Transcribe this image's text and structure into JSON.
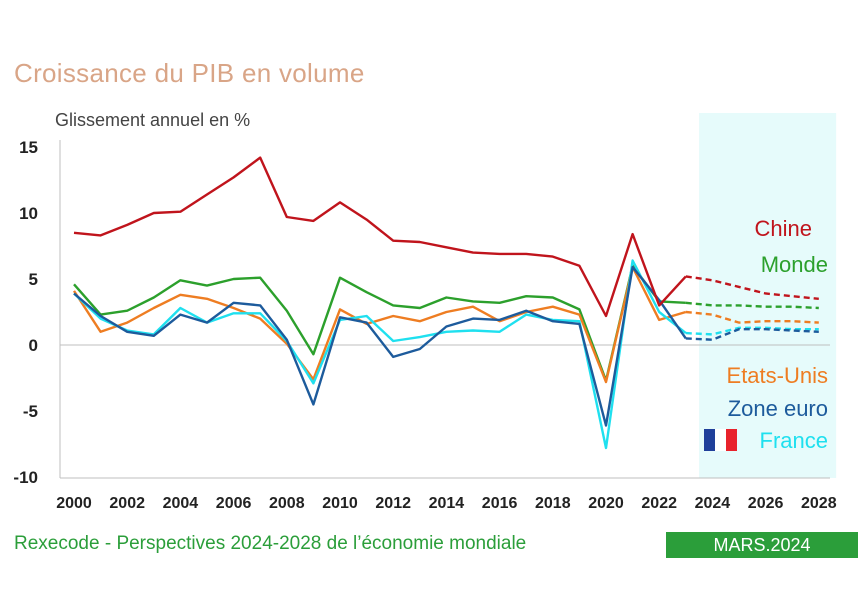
{
  "header": {
    "title": "Croissance du PIB en volume",
    "subtitle": "Glissement annuel en %"
  },
  "footer": {
    "source": "Rexecode - Perspectives 2024-2028 de l’économie mondiale",
    "date": "MARS.2024"
  },
  "colors": {
    "chine": "#c0141c",
    "monde": "#2ca02c",
    "etats_unis": "#ee7d22",
    "zone_euro": "#1d5b9c",
    "france": "#1fe0ef",
    "forecast_bg": "#e6fbfb",
    "flag_blue": "#1f3f9a",
    "flag_red": "#e8222b"
  },
  "chart_data": {
    "type": "line",
    "title": "Croissance du PIB en volume",
    "ylabel": "Glissement annuel en %",
    "x": [
      2000,
      2001,
      2002,
      2003,
      2004,
      2005,
      2006,
      2007,
      2008,
      2009,
      2010,
      2011,
      2012,
      2013,
      2014,
      2015,
      2016,
      2017,
      2018,
      2019,
      2020,
      2021,
      2022,
      2023,
      2024,
      2025,
      2026,
      2027,
      2028
    ],
    "xticks": [
      2000,
      2002,
      2004,
      2006,
      2008,
      2010,
      2012,
      2014,
      2016,
      2018,
      2020,
      2022,
      2024,
      2026,
      2028
    ],
    "yticks": [
      15,
      10,
      5,
      0,
      -5,
      -10
    ],
    "ylim": [
      -10,
      15
    ],
    "xlim": [
      2000,
      2028
    ],
    "forecast_start": 2023,
    "forecast_shading": [
      2023.5,
      2028.5
    ],
    "series": [
      {
        "key": "chine",
        "name": "Chine",
        "values": [
          8.5,
          8.3,
          9.1,
          10.0,
          10.1,
          11.4,
          12.7,
          14.2,
          9.7,
          9.4,
          10.8,
          9.5,
          7.9,
          7.8,
          7.4,
          7.0,
          6.9,
          6.9,
          6.7,
          6.0,
          2.2,
          8.4,
          3.0,
          5.2,
          4.9,
          4.4,
          3.9,
          3.7,
          3.5
        ]
      },
      {
        "key": "monde",
        "name": "Monde",
        "values": [
          4.6,
          2.3,
          2.6,
          3.6,
          4.9,
          4.5,
          5.0,
          5.1,
          2.6,
          -0.7,
          5.1,
          4.0,
          3.0,
          2.8,
          3.6,
          3.3,
          3.2,
          3.7,
          3.6,
          2.7,
          -2.7,
          6.0,
          3.3,
          3.2,
          3.0,
          3.0,
          2.9,
          2.9,
          2.8
        ]
      },
      {
        "key": "etats_unis",
        "name": "Etats-Unis",
        "values": [
          4.1,
          1.0,
          1.7,
          2.8,
          3.8,
          3.5,
          2.8,
          2.0,
          0.1,
          -2.6,
          2.7,
          1.6,
          2.2,
          1.8,
          2.5,
          2.9,
          1.8,
          2.5,
          2.9,
          2.3,
          -2.8,
          5.9,
          1.9,
          2.5,
          2.3,
          1.7,
          1.8,
          1.8,
          1.7
        ]
      },
      {
        "key": "zone_euro",
        "name": "Zone euro",
        "values": [
          3.9,
          2.2,
          1.0,
          0.7,
          2.3,
          1.7,
          3.2,
          3.0,
          0.4,
          -4.5,
          2.1,
          1.7,
          -0.9,
          -0.3,
          1.4,
          2.0,
          1.9,
          2.6,
          1.8,
          1.6,
          -6.1,
          5.9,
          3.4,
          0.5,
          0.4,
          1.2,
          1.2,
          1.1,
          1.0
        ]
      },
      {
        "key": "france",
        "name": "France",
        "values": [
          3.9,
          2.0,
          1.1,
          0.8,
          2.8,
          1.7,
          2.4,
          2.4,
          0.3,
          -2.9,
          1.9,
          2.2,
          0.3,
          0.6,
          1.0,
          1.1,
          1.0,
          2.3,
          1.9,
          1.8,
          -7.8,
          6.4,
          2.5,
          0.9,
          0.8,
          1.3,
          1.3,
          1.2,
          1.2
        ]
      }
    ],
    "legend": [
      {
        "key": "chine",
        "label": "Chine"
      },
      {
        "key": "monde",
        "label": "Monde"
      },
      {
        "key": "etats_unis",
        "label": "Etats-Unis"
      },
      {
        "key": "zone_euro",
        "label": "Zone euro"
      },
      {
        "key": "france",
        "label": "France"
      }
    ]
  }
}
